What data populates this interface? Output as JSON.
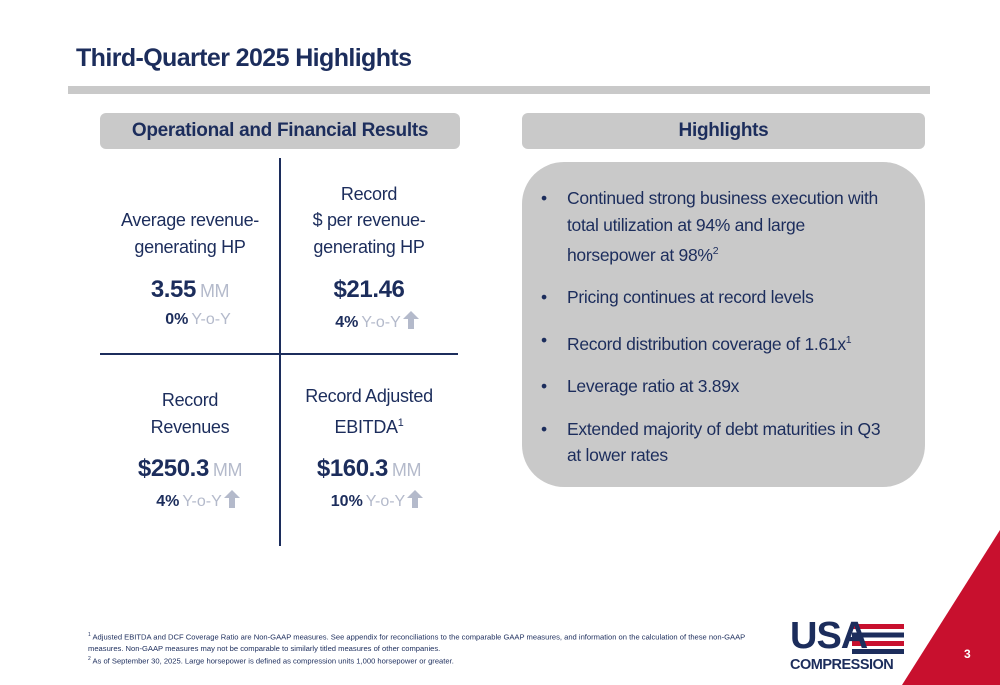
{
  "title": "Third-Quarter 2025 Highlights",
  "left_panel": {
    "header": "Operational and Financial Results",
    "metrics": [
      {
        "label_lines": [
          "Average revenue-",
          "generating HP"
        ],
        "value": "3.55",
        "unit": "MM",
        "change": "0%",
        "change_label": "Y-o-Y",
        "up_arrow": false
      },
      {
        "label_lines": [
          "Record",
          "$ per revenue-",
          "generating HP"
        ],
        "value": "$21.46",
        "change": "4%",
        "change_label": "Y-o-Y",
        "up_arrow": true
      },
      {
        "label_lines": [
          "Record",
          "Revenues"
        ],
        "value": "$250.3",
        "unit": "MM",
        "change": "4%",
        "change_label": "Y-o-Y",
        "up_arrow": true
      },
      {
        "label_lines": [
          "Record Adjusted",
          "EBITDA"
        ],
        "footnote_ref": "1",
        "value": "$160.3",
        "unit": "MM",
        "change": "10%",
        "change_label": "Y-o-Y",
        "up_arrow": true
      }
    ]
  },
  "right_panel": {
    "header": "Highlights",
    "bullets": [
      {
        "text": "Continued strong business execution with total utilization at 94% and large horsepower at 98%",
        "footnote_ref": "2"
      },
      {
        "text": "Pricing continues at record levels"
      },
      {
        "text": "Record distribution coverage of 1.61x",
        "footnote_ref": "1"
      },
      {
        "text": "Leverage ratio at 3.89x"
      },
      {
        "text": "Extended majority of debt maturities in Q3 at lower rates"
      }
    ]
  },
  "footnotes": [
    {
      "marker": "1",
      "text": "Adjusted EBITDA and DCF Coverage Ratio are Non-GAAP measures. See appendix for reconciliations to the comparable GAAP measures, and information on the calculation of these non-GAAP measures. Non-GAAP measures may not be comparable to similarly titled measures of other companies."
    },
    {
      "marker": "2",
      "text": "As of September 30, 2025.  Large horsepower is defined as compression units 1,000 horsepower or greater."
    }
  ],
  "logo": {
    "line1": "USA",
    "line2": "COMPRESSION"
  },
  "page_number": "3"
}
